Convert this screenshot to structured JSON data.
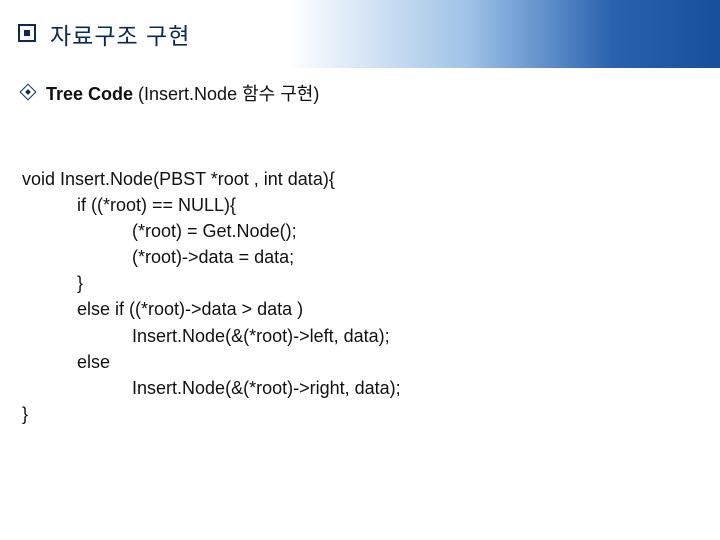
{
  "header": {
    "title": "자료구조 구현"
  },
  "sub": {
    "prefix_bold": "Tree Code ",
    "suffix": "(Insert.Node 함수 구현)"
  },
  "code": {
    "lines": [
      "void Insert.Node(PBST *root , int data){",
      "           if ((*root) == NULL){",
      "                      (*root) = Get.Node();",
      "                      (*root)->data = data;",
      "           }",
      "           else if ((*root)->data > data )",
      "                      Insert.Node(&(*root)->left, data);",
      "           else",
      "                      Insert.Node(&(*root)->right, data);",
      "}"
    ]
  },
  "colors": {
    "brand_dark": "#0a2a55",
    "brand_blue": "#174f9c",
    "gradient_light": "#9fc3e8",
    "background": "#ffffff",
    "text": "#111111"
  },
  "typography": {
    "header_fontsize": 23,
    "sub_fontsize": 18,
    "code_fontsize": 18,
    "line_height": 1.45
  }
}
